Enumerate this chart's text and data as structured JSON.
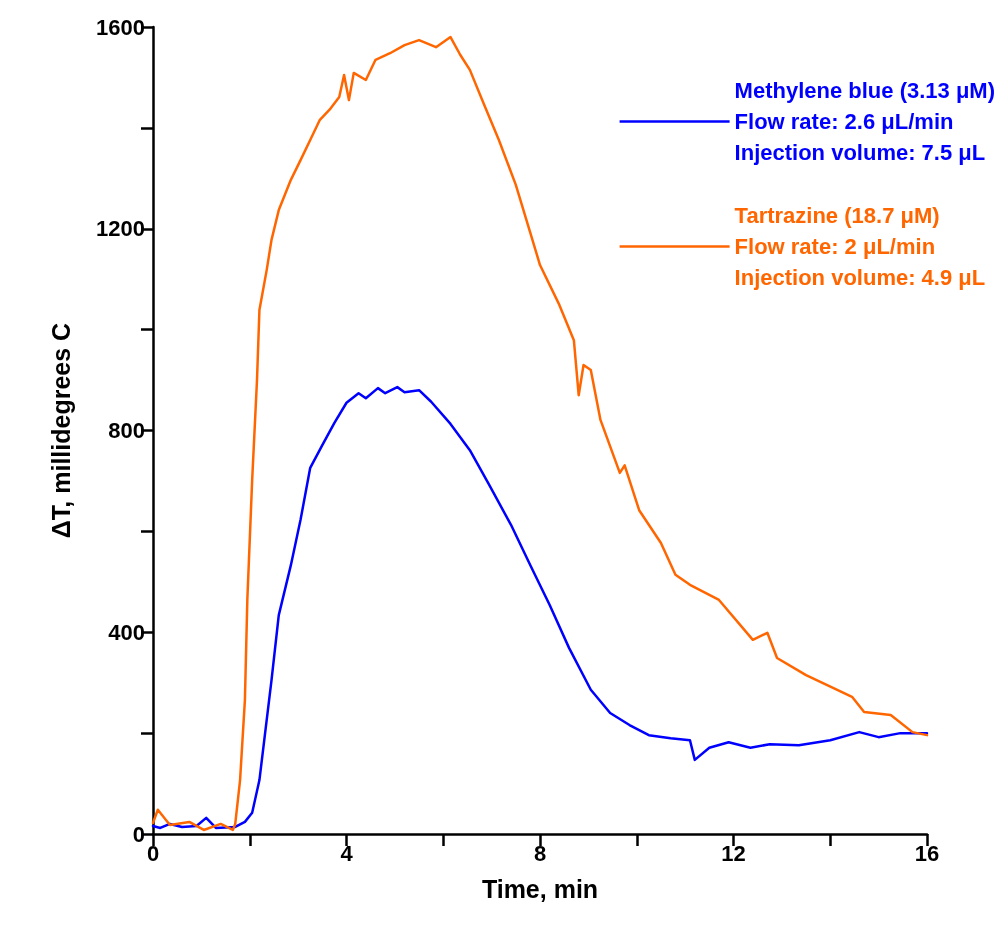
{
  "chart_data": {
    "type": "line",
    "xlabel": "Time, min",
    "ylabel": "ΔT, millidegrees C",
    "xlim": [
      0,
      16
    ],
    "xticks": [
      0,
      {
        "value": 2,
        "label": null
      },
      4,
      {
        "value": 6,
        "label": null
      },
      8,
      {
        "value": 10,
        "label": null
      },
      12,
      {
        "value": 14,
        "label": null
      },
      16
    ],
    "ylim": [
      0,
      1600
    ],
    "yticks": [
      0,
      {
        "value": 200,
        "label": null
      },
      400,
      {
        "value": 600,
        "label": null
      },
      800,
      {
        "value": 1000,
        "label": null
      },
      1200,
      {
        "value": 1400,
        "label": null
      },
      1600
    ],
    "grid": false,
    "legend": "top right",
    "marker": "none",
    "line_style": "solid",
    "series": [
      {
        "name": "Methylene blue (3.13 μM)\nFlow rate: 2.6 μL/min\nInjection volume: 7.5 μL",
        "color": "#0000ff",
        "x": [
          0,
          0.15,
          0.35,
          0.6,
          0.9,
          1.1,
          1.3,
          1.7,
          1.9,
          2.05,
          2.2,
          2.3,
          2.45,
          2.6,
          2.85,
          3.05,
          3.25,
          3.5,
          3.75,
          4.0,
          4.25,
          4.4,
          4.65,
          4.8,
          5.05,
          5.2,
          5.5,
          5.75,
          6.15,
          6.55,
          6.95,
          7.4,
          7.8,
          8.2,
          8.6,
          9.05,
          9.45,
          9.85,
          10.25,
          10.7,
          11.1,
          11.2,
          11.5,
          11.9,
          12.35,
          12.75,
          13.35,
          14.0,
          14.6,
          15.0,
          15.45,
          16.0
        ],
        "values": [
          16,
          12,
          20,
          14,
          16,
          32,
          12,
          14,
          24,
          42,
          107,
          186,
          305,
          434,
          533,
          623,
          726,
          771,
          815,
          855,
          874,
          864,
          884,
          874,
          886,
          876,
          880,
          857,
          813,
          761,
          692,
          613,
          533,
          454,
          369,
          286,
          240,
          216,
          196,
          190,
          186,
          147,
          171,
          182,
          171,
          178,
          176,
          186,
          202,
          192,
          200,
          200
        ]
      },
      {
        "name": "Tartrazine (18.7 μM)\nFlow rate: 2 μL/min\nInjection volume: 4.9 μL",
        "color": "#ff6600",
        "x": [
          0,
          0.1,
          0.35,
          0.75,
          1.05,
          1.4,
          1.65,
          1.7,
          1.8,
          1.9,
          1.95,
          2.05,
          2.15,
          2.2,
          2.35,
          2.45,
          2.6,
          2.85,
          3.05,
          3.25,
          3.45,
          3.65,
          3.85,
          3.95,
          4.05,
          4.15,
          4.4,
          4.6,
          4.9,
          5.2,
          5.5,
          5.85,
          6.15,
          6.35,
          6.55,
          6.85,
          7.15,
          7.5,
          7.8,
          8.0,
          8.4,
          8.7,
          8.8,
          8.9,
          9.05,
          9.25,
          9.65,
          9.75,
          10.05,
          10.5,
          10.8,
          11.1,
          11.7,
          12.4,
          12.7,
          12.9,
          13.5,
          14.45,
          14.7,
          15.25,
          15.7,
          16.0
        ],
        "values": [
          22,
          48,
          18,
          24,
          8,
          20,
          8,
          20,
          107,
          266,
          464,
          702,
          900,
          1039,
          1118,
          1178,
          1237,
          1297,
          1336,
          1376,
          1416,
          1436,
          1461,
          1505,
          1455,
          1509,
          1495,
          1535,
          1548,
          1564,
          1574,
          1560,
          1580,
          1545,
          1515,
          1445,
          1376,
          1287,
          1192,
          1128,
          1049,
          979,
          870,
          930,
          920,
          821,
          716,
          731,
          642,
          577,
          514,
          494,
          464,
          385,
          399,
          349,
          315,
          272,
          242,
          236,
          202,
          196
        ]
      }
    ]
  }
}
